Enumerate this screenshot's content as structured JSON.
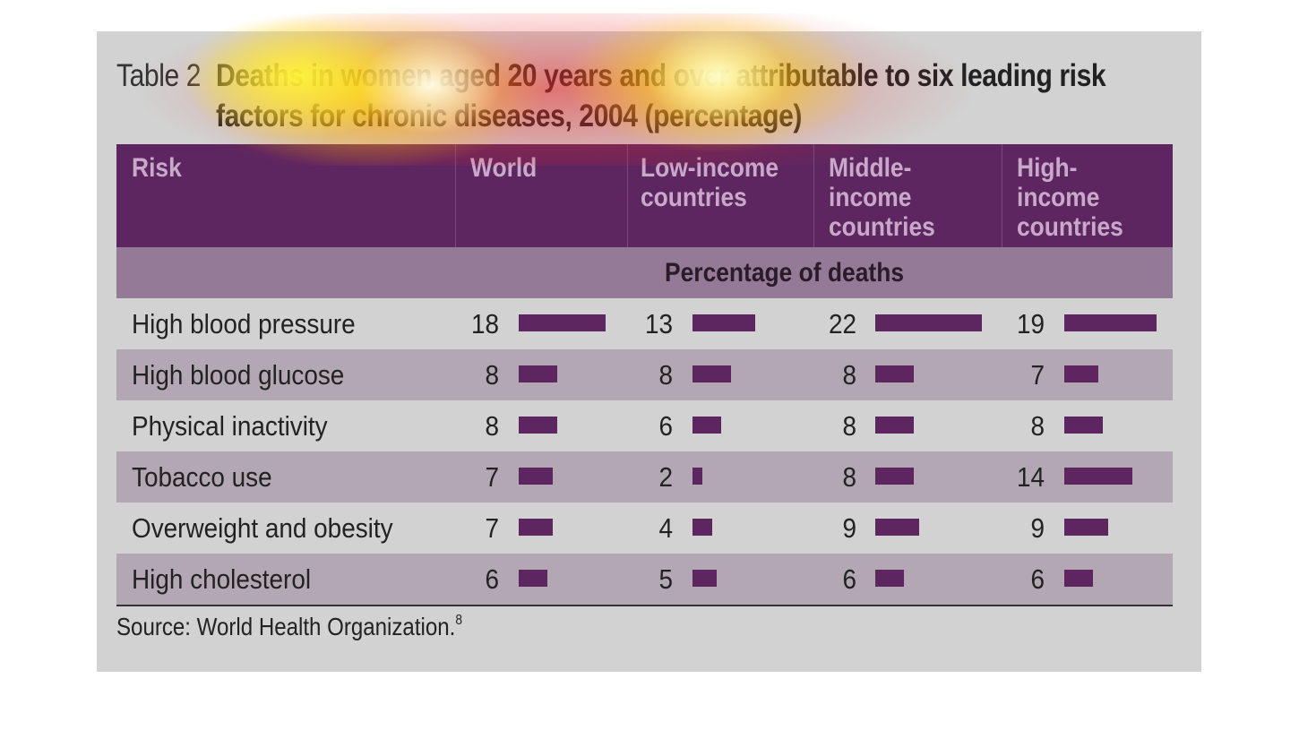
{
  "table": {
    "label": "Table 2",
    "title_line1": "Deaths in women aged 20 years and over attributable to six leading risk",
    "title_line2": "factors for chronic diseases, 2004 (percentage)",
    "headers": [
      "Risk",
      "World",
      "Low-income\ncountries",
      "Middle-\nincome\ncountries",
      "High-\nincome\ncountries"
    ],
    "subheader": "Percentage of deaths",
    "rows": [
      {
        "risk": "High blood pressure",
        "values": [
          18,
          13,
          22,
          19
        ]
      },
      {
        "risk": "High blood glucose",
        "values": [
          8,
          8,
          8,
          7
        ]
      },
      {
        "risk": "Physical inactivity",
        "values": [
          8,
          6,
          8,
          8
        ]
      },
      {
        "risk": "Tobacco use",
        "values": [
          7,
          2,
          8,
          14
        ]
      },
      {
        "risk": "Overweight and obesity",
        "values": [
          7,
          4,
          9,
          9
        ]
      },
      {
        "risk": "High cholesterol",
        "values": [
          6,
          5,
          6,
          6
        ]
      }
    ],
    "source": "Source: World Health Organization.",
    "source_ref": "8"
  },
  "colors": {
    "header_bg": "#5e2660",
    "header_text": "#c9a9c9",
    "subheader_bg": "#947a96",
    "row_shade": "#b3a7b4",
    "panel_bg": "#d2d2d2",
    "bar": "#5e2660"
  }
}
